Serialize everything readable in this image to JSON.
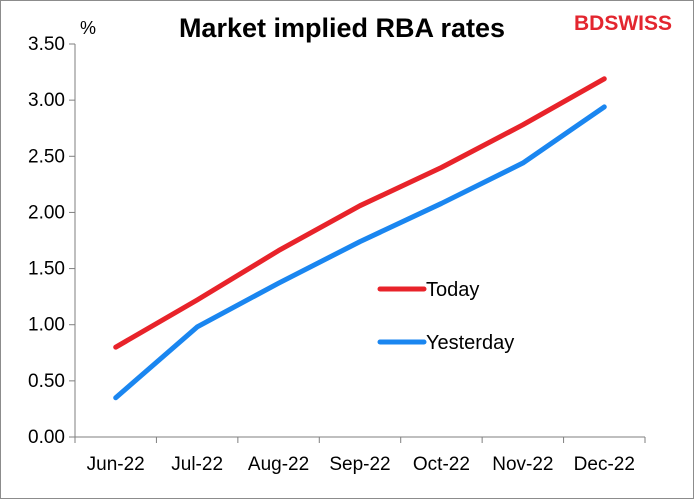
{
  "colors": {
    "today": "#e8232a",
    "yesterday": "#1a86f0",
    "brand": "#e3262f",
    "axis": "#7f7f7f"
  },
  "brand": {
    "logo": "BDSWISS"
  },
  "chart_data": {
    "type": "line",
    "title": "Market implied RBA rates",
    "ylabel": "%",
    "xlabel": "",
    "categories": [
      "Jun-22",
      "Jul-22",
      "Aug-22",
      "Sep-22",
      "Oct-22",
      "Nov-22",
      "Dec-22"
    ],
    "ylim": [
      0,
      3.5
    ],
    "yticks": [
      "0.00",
      "0.50",
      "1.00",
      "1.50",
      "2.00",
      "2.50",
      "3.00",
      "3.50"
    ],
    "grid": false,
    "legend": "center-right",
    "series": [
      {
        "name": "Today",
        "values": [
          0.8,
          1.22,
          1.66,
          2.06,
          2.4,
          2.78,
          3.19
        ]
      },
      {
        "name": "Yesterday",
        "values": [
          0.35,
          0.98,
          1.37,
          1.74,
          2.08,
          2.44,
          2.94
        ]
      }
    ]
  }
}
